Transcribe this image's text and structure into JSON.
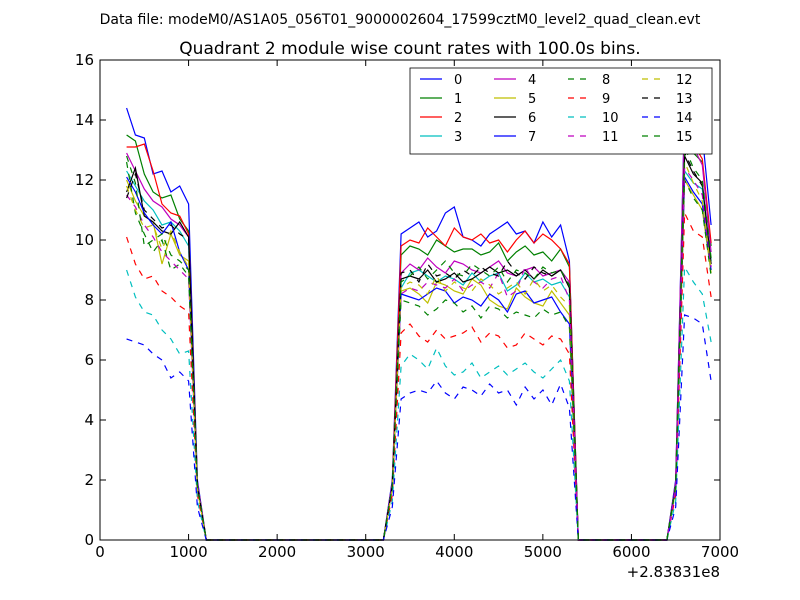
{
  "suptitle": "Data file: modeM0/AS1A05_056T01_9000002604_17599cztM0_level2_quad_clean.evt",
  "chart_data": {
    "type": "line",
    "title": "Quadrant 2 module wise count rates with 100.0s bins.",
    "xlabel": "",
    "ylabel": "",
    "xlim": [
      0,
      7000
    ],
    "ylim": [
      0,
      16
    ],
    "x_offset_label": "+2.83831e8",
    "xticks": [
      0,
      1000,
      2000,
      3000,
      4000,
      5000,
      6000,
      7000
    ],
    "yticks": [
      0,
      2,
      4,
      6,
      8,
      10,
      12,
      14,
      16
    ],
    "grid": false,
    "legend_position": "top-right",
    "x": [
      300,
      400,
      500,
      600,
      700,
      800,
      900,
      1000,
      1100,
      1200,
      1300,
      1400,
      1500,
      1600,
      1700,
      1800,
      1900,
      2000,
      2100,
      2200,
      2300,
      2400,
      2500,
      2600,
      2700,
      2800,
      2900,
      3000,
      3100,
      3200,
      3300,
      3400,
      3500,
      3600,
      3700,
      3800,
      3900,
      4000,
      4100,
      4200,
      4300,
      4400,
      4500,
      4600,
      4700,
      4800,
      4900,
      5000,
      5100,
      5200,
      5300,
      5400,
      5500,
      5600,
      5700,
      5800,
      5900,
      6000,
      6100,
      6200,
      6300,
      6400,
      6500,
      6600,
      6700,
      6800,
      6900
    ],
    "series": [
      {
        "name": "0",
        "color": "#0000ff",
        "dash": "solid",
        "values": [
          14.4,
          13.5,
          13.4,
          12.2,
          12.3,
          11.6,
          11.8,
          11.2,
          2.0,
          0,
          0,
          0,
          0,
          0,
          0,
          0,
          0,
          0,
          0,
          0,
          0,
          0,
          0,
          0,
          0,
          0,
          0,
          0,
          0,
          0,
          2.0,
          10.2,
          10.4,
          10.6,
          10.1,
          10.3,
          10.9,
          11.1,
          10.1,
          10.0,
          9.8,
          10.2,
          10.4,
          10.6,
          10.2,
          10.3,
          9.9,
          10.6,
          10.1,
          10.5,
          9.3,
          0,
          0,
          0,
          0,
          0,
          0,
          0,
          0,
          0,
          0,
          0,
          2.0,
          14.4,
          13.8,
          13.5,
          10.5
        ]
      },
      {
        "name": "1",
        "color": "#008000",
        "dash": "solid",
        "values": [
          13.5,
          13.3,
          12.2,
          11.6,
          11.4,
          11.5,
          10.7,
          10.3,
          1.9,
          0,
          0,
          0,
          0,
          0,
          0,
          0,
          0,
          0,
          0,
          0,
          0,
          0,
          0,
          0,
          0,
          0,
          0,
          0,
          0,
          0,
          1.9,
          9.5,
          9.8,
          9.7,
          9.5,
          10.0,
          9.8,
          9.6,
          9.7,
          9.7,
          9.5,
          9.6,
          9.9,
          9.3,
          9.6,
          9.8,
          9.5,
          9.6,
          9.3,
          9.7,
          9.1,
          0,
          0,
          0,
          0,
          0,
          0,
          0,
          0,
          0,
          0,
          0,
          1.9,
          13.5,
          12.9,
          12.6,
          9.8
        ]
      },
      {
        "name": "2",
        "color": "#ff0000",
        "dash": "solid",
        "values": [
          13.1,
          13.1,
          13.2,
          12.3,
          11.2,
          10.9,
          10.8,
          10.2,
          1.9,
          0,
          0,
          0,
          0,
          0,
          0,
          0,
          0,
          0,
          0,
          0,
          0,
          0,
          0,
          0,
          0,
          0,
          0,
          0,
          0,
          0,
          1.9,
          9.8,
          10.0,
          9.9,
          10.4,
          10.1,
          9.8,
          10.4,
          10.1,
          10.0,
          10.2,
          9.9,
          10.0,
          9.6,
          10.0,
          10.3,
          9.9,
          10.2,
          10.0,
          9.7,
          9.2,
          0,
          0,
          0,
          0,
          0,
          0,
          0,
          0,
          0,
          0,
          0,
          1.9,
          13.9,
          13.2,
          12.7,
          9.9
        ]
      },
      {
        "name": "3",
        "color": "#00bfbf",
        "dash": "solid",
        "values": [
          12.3,
          11.8,
          11.3,
          11.0,
          10.5,
          10.6,
          10.3,
          9.8,
          1.8,
          0,
          0,
          0,
          0,
          0,
          0,
          0,
          0,
          0,
          0,
          0,
          0,
          0,
          0,
          0,
          0,
          0,
          0,
          0,
          0,
          0,
          1.8,
          8.4,
          8.9,
          9.0,
          8.8,
          8.6,
          8.8,
          8.7,
          8.5,
          8.9,
          8.6,
          8.8,
          8.9,
          8.3,
          8.5,
          8.9,
          8.6,
          8.7,
          8.5,
          8.6,
          8.1,
          0,
          0,
          0,
          0,
          0,
          0,
          0,
          0,
          0,
          0,
          0,
          1.8,
          12.3,
          11.9,
          11.7,
          9.3
        ]
      },
      {
        "name": "4",
        "color": "#bf00bf",
        "dash": "solid",
        "values": [
          12.9,
          12.3,
          11.7,
          11.3,
          11.1,
          10.7,
          10.5,
          10.1,
          1.9,
          0,
          0,
          0,
          0,
          0,
          0,
          0,
          0,
          0,
          0,
          0,
          0,
          0,
          0,
          0,
          0,
          0,
          0,
          0,
          0,
          0,
          1.9,
          8.9,
          9.2,
          9.0,
          9.4,
          9.1,
          8.9,
          9.3,
          9.2,
          9.0,
          8.9,
          9.1,
          9.3,
          8.9,
          8.8,
          9.0,
          9.1,
          8.8,
          8.9,
          9.0,
          8.6,
          0,
          0,
          0,
          0,
          0,
          0,
          0,
          0,
          0,
          0,
          0,
          1.9,
          14.3,
          13.1,
          12.5,
          9.6
        ]
      },
      {
        "name": "5",
        "color": "#bfbf00",
        "dash": "solid",
        "values": [
          12.0,
          11.3,
          10.8,
          10.6,
          9.2,
          10.2,
          9.5,
          9.3,
          1.8,
          0,
          0,
          0,
          0,
          0,
          0,
          0,
          0,
          0,
          0,
          0,
          0,
          0,
          0,
          0,
          0,
          0,
          0,
          0,
          0,
          0,
          1.8,
          8.3,
          8.4,
          8.2,
          7.9,
          8.6,
          8.5,
          8.3,
          8.2,
          8.7,
          8.5,
          8.0,
          7.8,
          7.7,
          8.4,
          8.1,
          7.9,
          7.8,
          8.3,
          7.9,
          7.5,
          0,
          0,
          0,
          0,
          0,
          0,
          0,
          0,
          0,
          0,
          0,
          1.8,
          12.0,
          11.5,
          11.0,
          8.9
        ]
      },
      {
        "name": "6",
        "color": "#000000",
        "dash": "solid",
        "values": [
          11.6,
          12.4,
          10.8,
          10.6,
          10.3,
          10.2,
          10.6,
          10.1,
          1.8,
          0,
          0,
          0,
          0,
          0,
          0,
          0,
          0,
          0,
          0,
          0,
          0,
          0,
          0,
          0,
          0,
          0,
          0,
          0,
          0,
          0,
          1.8,
          8.7,
          8.8,
          8.7,
          9.0,
          8.6,
          8.7,
          8.9,
          8.6,
          8.7,
          8.9,
          9.1,
          8.9,
          9.0,
          8.8,
          9.0,
          8.7,
          9.0,
          8.8,
          9.0,
          8.4,
          0,
          0,
          0,
          0,
          0,
          0,
          0,
          0,
          0,
          0,
          0,
          1.8,
          12.8,
          12.2,
          11.9,
          9.2
        ]
      },
      {
        "name": "7",
        "color": "#0000ff",
        "dash": "solid",
        "values": [
          12.1,
          11.6,
          10.9,
          10.5,
          10.2,
          10.6,
          9.6,
          9.0,
          1.8,
          0,
          0,
          0,
          0,
          0,
          0,
          0,
          0,
          0,
          0,
          0,
          0,
          0,
          0,
          0,
          0,
          0,
          0,
          0,
          0,
          0,
          1.8,
          8.2,
          8.1,
          8.0,
          8.2,
          8.4,
          8.3,
          7.9,
          8.1,
          8.0,
          7.8,
          8.2,
          8.0,
          7.6,
          8.2,
          8.3,
          7.9,
          8.0,
          8.1,
          7.6,
          7.2,
          0,
          0,
          0,
          0,
          0,
          0,
          0,
          0,
          0,
          0,
          0,
          1.8,
          12.1,
          11.6,
          11.2,
          9.0
        ]
      },
      {
        "name": "8",
        "color": "#008000",
        "dash": "dash",
        "values": [
          12.6,
          10.9,
          10.2,
          9.6,
          10.0,
          9.0,
          9.2,
          8.8,
          1.7,
          0,
          0,
          0,
          0,
          0,
          0,
          0,
          0,
          0,
          0,
          0,
          0,
          0,
          0,
          0,
          0,
          0,
          0,
          0,
          0,
          0,
          1.7,
          8.0,
          7.9,
          7.8,
          7.5,
          7.7,
          8.0,
          7.9,
          7.6,
          7.8,
          7.4,
          7.8,
          7.7,
          7.4,
          7.6,
          7.5,
          7.4,
          7.7,
          7.5,
          7.6,
          7.1,
          0,
          0,
          0,
          0,
          0,
          0,
          0,
          0,
          0,
          0,
          0,
          1.7,
          12.0,
          11.4,
          11.0,
          8.8
        ]
      },
      {
        "name": "9",
        "color": "#ff0000",
        "dash": "dash",
        "values": [
          10.1,
          9.2,
          8.7,
          8.8,
          8.3,
          8.1,
          7.8,
          7.6,
          1.5,
          0,
          0,
          0,
          0,
          0,
          0,
          0,
          0,
          0,
          0,
          0,
          0,
          0,
          0,
          0,
          0,
          0,
          0,
          0,
          0,
          0,
          1.5,
          6.9,
          7.2,
          6.8,
          6.6,
          7.0,
          6.7,
          6.8,
          6.9,
          7.1,
          6.6,
          6.9,
          6.8,
          6.4,
          6.5,
          6.9,
          6.7,
          6.5,
          6.8,
          6.7,
          6.2,
          0,
          0,
          0,
          0,
          0,
          0,
          0,
          0,
          0,
          0,
          0,
          1.5,
          10.9,
          10.3,
          10.1,
          8.1
        ]
      },
      {
        "name": "10",
        "color": "#00bfbf",
        "dash": "dash",
        "values": [
          9.0,
          8.1,
          7.6,
          7.5,
          7.0,
          6.7,
          6.2,
          6.3,
          1.3,
          0,
          0,
          0,
          0,
          0,
          0,
          0,
          0,
          0,
          0,
          0,
          0,
          0,
          0,
          0,
          0,
          0,
          0,
          0,
          0,
          0,
          1.3,
          5.8,
          6.2,
          6.0,
          5.7,
          6.4,
          5.8,
          5.5,
          5.6,
          5.9,
          5.4,
          5.6,
          5.8,
          5.5,
          5.7,
          5.9,
          5.6,
          5.4,
          5.7,
          6.0,
          5.3,
          0,
          0,
          0,
          0,
          0,
          0,
          0,
          0,
          0,
          0,
          0,
          1.3,
          9.1,
          8.6,
          8.2,
          6.6
        ]
      },
      {
        "name": "11",
        "color": "#bf00bf",
        "dash": "dash",
        "values": [
          11.5,
          11.1,
          10.5,
          10.1,
          9.6,
          9.3,
          9.0,
          8.7,
          1.7,
          0,
          0,
          0,
          0,
          0,
          0,
          0,
          0,
          0,
          0,
          0,
          0,
          0,
          0,
          0,
          0,
          0,
          0,
          0,
          0,
          0,
          1.7,
          8.2,
          8.4,
          8.3,
          8.6,
          8.5,
          8.4,
          8.7,
          8.3,
          8.5,
          8.6,
          8.4,
          8.9,
          8.1,
          8.3,
          9.1,
          8.6,
          8.4,
          8.7,
          8.8,
          8.0,
          0,
          0,
          0,
          0,
          0,
          0,
          0,
          0,
          0,
          0,
          0,
          1.7,
          12.4,
          12.0,
          11.5,
          9.1
        ]
      },
      {
        "name": "12",
        "color": "#bfbf00",
        "dash": "dash",
        "values": [
          11.8,
          11.0,
          10.4,
          10.5,
          9.7,
          10.3,
          9.6,
          9.1,
          1.7,
          0,
          0,
          0,
          0,
          0,
          0,
          0,
          0,
          0,
          0,
          0,
          0,
          0,
          0,
          0,
          0,
          0,
          0,
          0,
          0,
          0,
          1.7,
          8.4,
          8.6,
          8.5,
          8.2,
          8.8,
          8.3,
          8.6,
          8.4,
          8.3,
          8.7,
          8.5,
          8.2,
          8.4,
          8.6,
          8.2,
          8.7,
          8.3,
          8.5,
          8.1,
          7.8,
          0,
          0,
          0,
          0,
          0,
          0,
          0,
          0,
          0,
          0,
          0,
          1.7,
          12.6,
          11.9,
          11.3,
          9.0
        ]
      },
      {
        "name": "13",
        "color": "#000000",
        "dash": "dash",
        "values": [
          11.4,
          12.2,
          11.0,
          10.7,
          10.4,
          10.5,
          10.2,
          10.0,
          1.8,
          0,
          0,
          0,
          0,
          0,
          0,
          0,
          0,
          0,
          0,
          0,
          0,
          0,
          0,
          0,
          0,
          0,
          0,
          0,
          0,
          0,
          1.8,
          8.9,
          9.0,
          8.6,
          9.2,
          8.8,
          8.9,
          8.7,
          9.0,
          8.8,
          9.1,
          8.9,
          8.8,
          9.3,
          8.9,
          8.7,
          9.1,
          8.9,
          8.8,
          9.0,
          8.5,
          0,
          0,
          0,
          0,
          0,
          0,
          0,
          0,
          0,
          0,
          0,
          1.8,
          12.9,
          12.3,
          11.8,
          9.3
        ]
      },
      {
        "name": "14",
        "color": "#0000ff",
        "dash": "dash",
        "values": [
          6.7,
          6.6,
          6.5,
          6.2,
          6.0,
          5.4,
          5.6,
          5.3,
          1.1,
          0,
          0,
          0,
          0,
          0,
          0,
          0,
          0,
          0,
          0,
          0,
          0,
          0,
          0,
          0,
          0,
          0,
          0,
          0,
          0,
          0,
          1.1,
          4.7,
          4.9,
          5.0,
          4.9,
          5.3,
          4.9,
          4.7,
          5.1,
          5.0,
          4.8,
          5.2,
          4.9,
          5.0,
          4.5,
          5.1,
          4.7,
          5.0,
          4.5,
          5.2,
          4.4,
          0,
          0,
          0,
          0,
          0,
          0,
          0,
          0,
          0,
          0,
          0,
          1.1,
          7.5,
          7.4,
          7.2,
          5.3
        ]
      },
      {
        "name": "15",
        "color": "#008000",
        "dash": "dash",
        "values": [
          12.8,
          11.9,
          9.8,
          10.0,
          10.2,
          9.5,
          9.3,
          9.0,
          1.8,
          0,
          0,
          0,
          0,
          0,
          0,
          0,
          0,
          0,
          0,
          0,
          0,
          0,
          0,
          0,
          0,
          0,
          0,
          0,
          0,
          0,
          1.8,
          8.6,
          8.8,
          9.1,
          8.7,
          9.0,
          9.3,
          8.9,
          8.8,
          9.2,
          9.0,
          8.8,
          9.1,
          8.6,
          9.0,
          8.9,
          8.7,
          9.1,
          8.9,
          9.0,
          8.5,
          0,
          0,
          0,
          0,
          0,
          0,
          0,
          0,
          0,
          0,
          0,
          1.8,
          13.1,
          12.4,
          12.0,
          9.4
        ]
      }
    ]
  }
}
